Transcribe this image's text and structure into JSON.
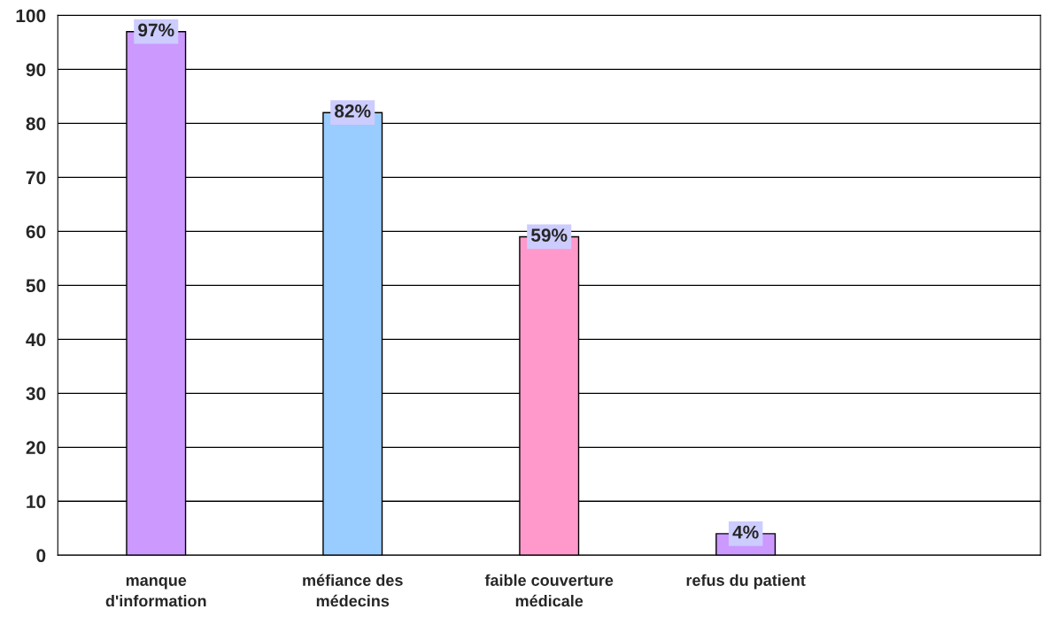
{
  "chart_data": {
    "type": "bar",
    "categories": [
      "manque\nd'information",
      "méfiance des\nmédecins",
      "faible couverture\nmédicale",
      "refus du patient",
      null
    ],
    "values": [
      97,
      82,
      59,
      4,
      null
    ],
    "colors": [
      "#cc99ff",
      "#99ccff",
      "#ff99cc",
      "#cc99ff",
      "#cc99ff"
    ],
    "value_labels": [
      "97%",
      "82%",
      "59%",
      "4%",
      null
    ],
    "ylim": [
      0,
      100
    ],
    "yticks": [
      0,
      10,
      20,
      30,
      40,
      50,
      60,
      70,
      80,
      90,
      100
    ],
    "grid": "y",
    "legend": false
  }
}
